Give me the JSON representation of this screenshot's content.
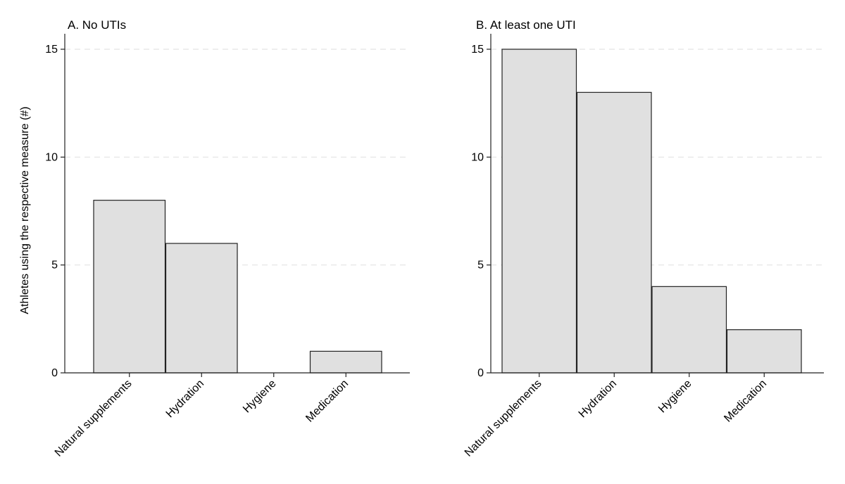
{
  "figure": {
    "ylabel": "Athletes using the respective measure (#)"
  },
  "chart_data": [
    {
      "type": "bar",
      "title": "A. No UTIs",
      "xlabel": "",
      "ylabel": "Athletes using the respective measure (#)",
      "categories": [
        "Natural supplements",
        "Hydration",
        "Hygiene",
        "Medication"
      ],
      "values": [
        8,
        6,
        0,
        1
      ],
      "ylim": [
        0,
        15
      ],
      "yticks": [
        0,
        5,
        10,
        15
      ],
      "grid": "horizontal dashed",
      "bar_color": "#e0e0e0",
      "edge_color": "#222222"
    },
    {
      "type": "bar",
      "title": "B. At least one UTI",
      "xlabel": "",
      "ylabel": "",
      "categories": [
        "Natural supplements",
        "Hydration",
        "Hygiene",
        "Medication"
      ],
      "values": [
        15,
        13,
        4,
        2
      ],
      "ylim": [
        0,
        15
      ],
      "yticks": [
        0,
        5,
        10,
        15
      ],
      "grid": "horizontal dashed",
      "bar_color": "#e0e0e0",
      "edge_color": "#222222"
    }
  ]
}
